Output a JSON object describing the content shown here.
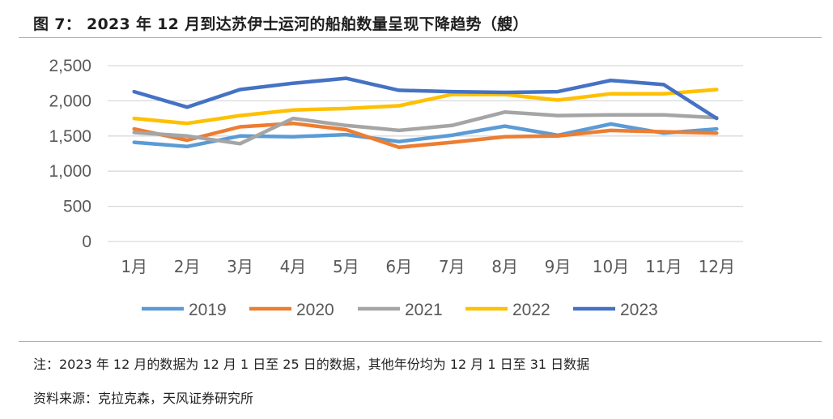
{
  "figure": {
    "title": "图 7： 2023 年 12 月到达苏伊士运河的船舶数量呈现下降趋势（艘）"
  },
  "notes": {
    "note": "注：2023 年 12 月的数据为 12 月 1 日至 25 日的数据，其他年份均为 12 月 1 日至 31 日数据",
    "source": "资料来源：克拉克森，天风证券研究所"
  },
  "colors": {
    "rule": "#d5a46b",
    "grid": "#d9d9d9",
    "axis_text": "#595959"
  },
  "chart_data": {
    "type": "line",
    "title": "",
    "xlabel": "",
    "ylabel": "",
    "categories": [
      "1月",
      "2月",
      "3月",
      "4月",
      "5月",
      "6月",
      "7月",
      "8月",
      "9月",
      "10月",
      "11月",
      "12月"
    ],
    "ylim": [
      0,
      2500
    ],
    "yticks": [
      0,
      500,
      1000,
      1500,
      2000,
      2500
    ],
    "ytick_labels": [
      "0",
      "500",
      "1,000",
      "1,500",
      "2,000",
      "2,500"
    ],
    "grid": true,
    "legend_position": "bottom",
    "series": [
      {
        "name": "2019",
        "color": "#5b9bd5",
        "values": [
          1410,
          1350,
          1500,
          1490,
          1520,
          1420,
          1510,
          1640,
          1510,
          1670,
          1540,
          1600
        ]
      },
      {
        "name": "2020",
        "color": "#ed7d31",
        "values": [
          1600,
          1440,
          1630,
          1680,
          1590,
          1340,
          1410,
          1490,
          1500,
          1580,
          1560,
          1540
        ]
      },
      {
        "name": "2021",
        "color": "#a5a5a5",
        "values": [
          1550,
          1500,
          1390,
          1750,
          1650,
          1580,
          1650,
          1840,
          1790,
          1800,
          1800,
          1760
        ]
      },
      {
        "name": "2022",
        "color": "#ffc000",
        "values": [
          1750,
          1680,
          1790,
          1870,
          1890,
          1930,
          2090,
          2090,
          2010,
          2100,
          2100,
          2160
        ]
      },
      {
        "name": "2023",
        "color": "#4472c4",
        "values": [
          2130,
          1910,
          2160,
          2250,
          2320,
          2150,
          2130,
          2120,
          2130,
          2290,
          2230,
          1750
        ]
      }
    ]
  }
}
